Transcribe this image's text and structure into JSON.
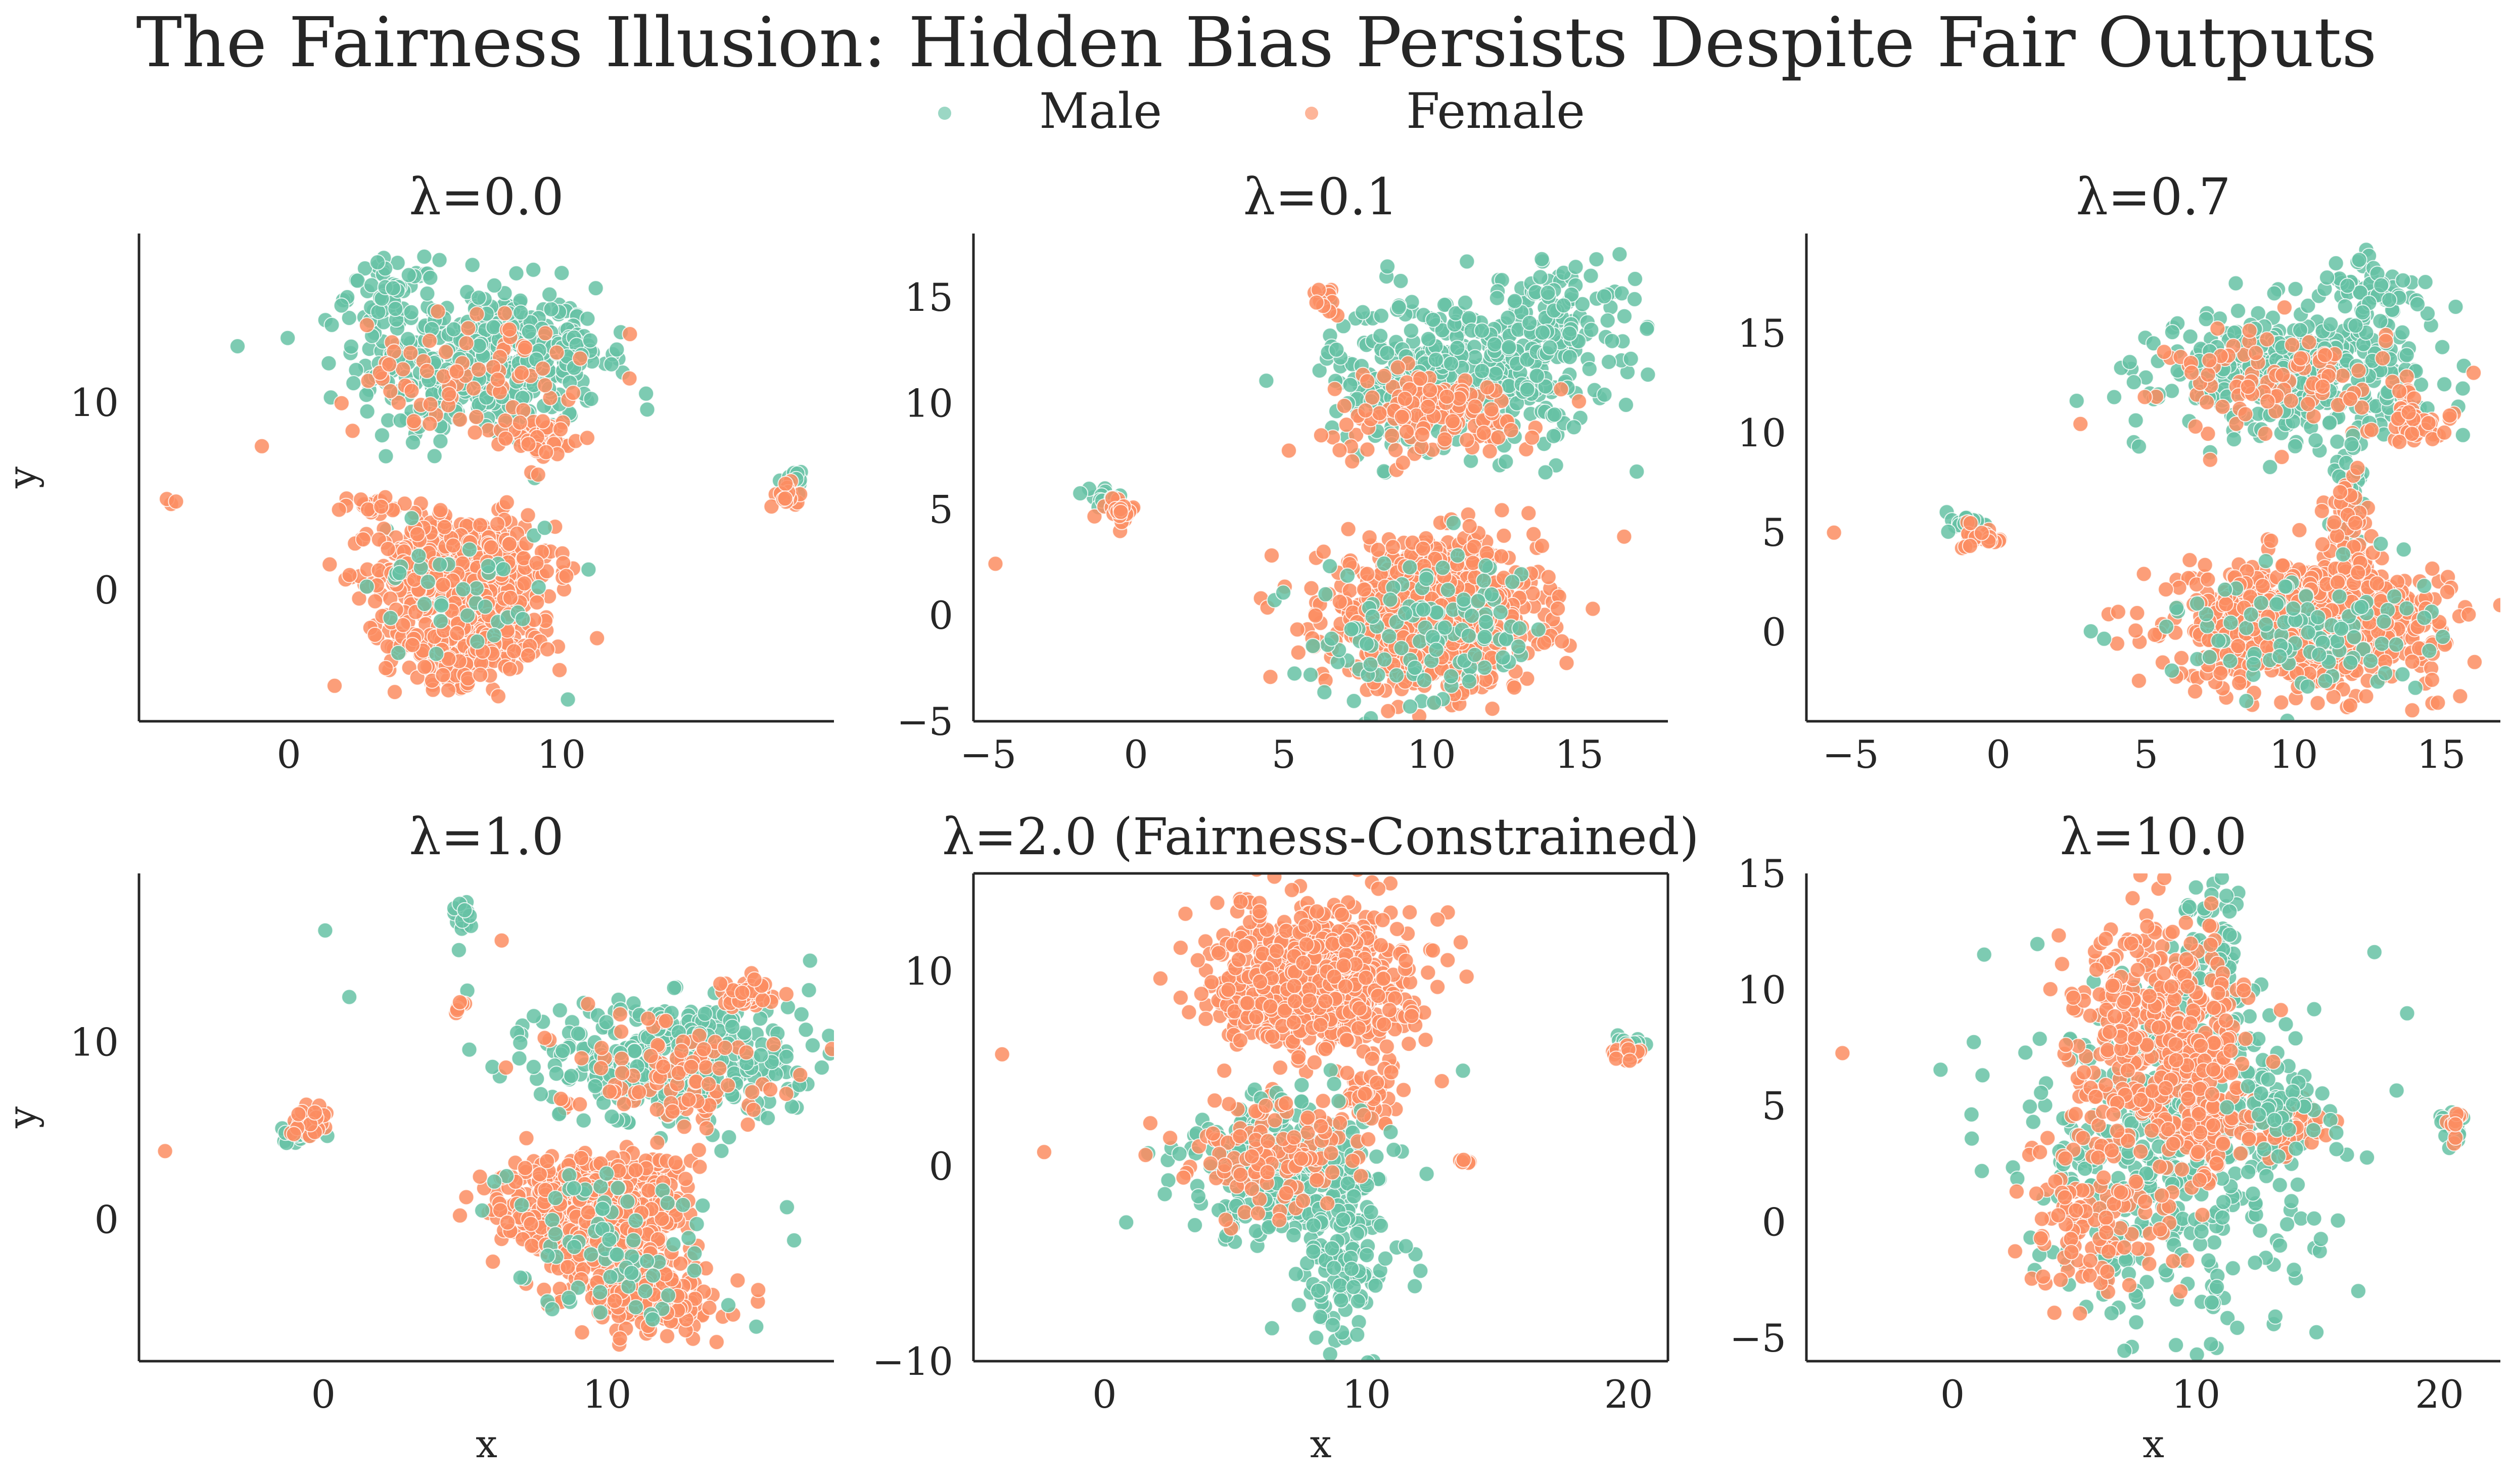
{
  "figure": {
    "title": "The Fairness Illusion: Hidden Bias Persists Despite Fair Outputs",
    "legend": [
      {
        "label": "Male",
        "color": "#66c2a5"
      },
      {
        "label": "Female",
        "color": "#fc8d62"
      }
    ]
  },
  "chart_data": [
    {
      "type": "scatter",
      "title": "λ=0.0",
      "xlabel": "",
      "ylabel": "y",
      "xlim": [
        -5.5,
        20
      ],
      "ylim": [
        -7,
        19
      ],
      "xticks": [
        0,
        10
      ],
      "yticks": [
        0,
        10
      ],
      "spines": "left-bottom",
      "grid": false,
      "clusters": [
        {
          "group": "Male",
          "cx": 7,
          "cy": 12,
          "sx": 2.2,
          "sy": 2.1,
          "n": 420
        },
        {
          "group": "Male",
          "cx": 3.8,
          "cy": 15.8,
          "sx": 0.8,
          "sy": 0.9,
          "n": 60
        },
        {
          "group": "Male",
          "cx": 10.3,
          "cy": 12.7,
          "sx": 0.9,
          "sy": 0.6,
          "n": 50
        },
        {
          "group": "Female",
          "cx": 6.5,
          "cy": 11.5,
          "sx": 2.0,
          "sy": 1.6,
          "n": 80
        },
        {
          "group": "Female",
          "cx": 9.2,
          "cy": 8.2,
          "sx": 0.6,
          "sy": 0.5,
          "n": 45
        },
        {
          "group": "Female",
          "cx": 6.5,
          "cy": 1.0,
          "sx": 1.6,
          "sy": 1.5,
          "n": 550
        },
        {
          "group": "Female",
          "cx": 6.5,
          "cy": -3.0,
          "sx": 1.5,
          "sy": 1.0,
          "n": 200
        },
        {
          "group": "Female",
          "cx": 3.0,
          "cy": 4.4,
          "sx": 0.7,
          "sy": 0.3,
          "n": 25
        },
        {
          "group": "Male",
          "cx": 6.5,
          "cy": 0.5,
          "sx": 1.8,
          "sy": 2.2,
          "n": 40
        },
        {
          "group": "Male",
          "cx": 18.5,
          "cy": 5.8,
          "sx": 0.2,
          "sy": 0.3,
          "n": 20
        },
        {
          "group": "Female",
          "cx": 18.3,
          "cy": 5.0,
          "sx": 0.2,
          "sy": 0.3,
          "n": 20
        },
        {
          "group": "Female",
          "cx": -4.3,
          "cy": 4.8,
          "sx": 0.1,
          "sy": 0.1,
          "n": 3
        },
        {
          "group": "Female",
          "cx": -1.0,
          "cy": 7.6,
          "sx": 0.05,
          "sy": 0.05,
          "n": 1
        },
        {
          "group": "Male",
          "cx": 0,
          "cy": 13.4,
          "sx": 0.05,
          "sy": 0.05,
          "n": 1
        }
      ]
    },
    {
      "type": "scatter",
      "title": "λ=0.1",
      "xlabel": "",
      "ylabel": "",
      "xlim": [
        -5.5,
        18
      ],
      "ylim": [
        -5,
        18
      ],
      "xticks": [
        -5,
        0,
        5,
        10,
        15
      ],
      "yticks": [
        -5,
        0,
        5,
        10,
        15
      ],
      "spines": "left-bottom",
      "grid": false,
      "clusters": [
        {
          "group": "Male",
          "cx": 11,
          "cy": 11.5,
          "sx": 2.2,
          "sy": 1.8,
          "n": 420
        },
        {
          "group": "Male",
          "cx": 14.5,
          "cy": 14.5,
          "sx": 1.2,
          "sy": 1.3,
          "n": 80
        },
        {
          "group": "Female",
          "cx": 10,
          "cy": 9.5,
          "sx": 1.8,
          "sy": 1.0,
          "n": 140
        },
        {
          "group": "Female",
          "cx": 6.5,
          "cy": 15.0,
          "sx": 0.3,
          "sy": 0.4,
          "n": 12
        },
        {
          "group": "Female",
          "cx": 10,
          "cy": 0,
          "sx": 1.8,
          "sy": 1.7,
          "n": 800
        },
        {
          "group": "Male",
          "cx": 10,
          "cy": -1,
          "sx": 2.0,
          "sy": 1.8,
          "n": 120
        },
        {
          "group": "Male",
          "cx": -1,
          "cy": 5.5,
          "sx": 0.3,
          "sy": 0.2,
          "n": 20
        },
        {
          "group": "Female",
          "cx": -0.6,
          "cy": 5.0,
          "sx": 0.3,
          "sy": 0.3,
          "n": 25
        },
        {
          "group": "Female",
          "cx": -4.8,
          "cy": 2.3,
          "sx": 0.05,
          "sy": 0.05,
          "n": 1
        },
        {
          "group": "Male",
          "cx": 17,
          "cy": 6.8,
          "sx": 0.05,
          "sy": 0.05,
          "n": 1
        }
      ]
    },
    {
      "type": "scatter",
      "title": "λ=0.7",
      "xlabel": "",
      "ylabel": "",
      "xlim": [
        -6.5,
        17
      ],
      "ylim": [
        -4.5,
        20
      ],
      "xticks": [
        -5,
        0,
        5,
        10,
        15
      ],
      "yticks": [
        0,
        5,
        10,
        15
      ],
      "spines": "left-bottom",
      "grid": false,
      "clusters": [
        {
          "group": "Male",
          "cx": 10,
          "cy": 13.0,
          "sx": 2.2,
          "sy": 1.5,
          "n": 420
        },
        {
          "group": "Male",
          "cx": 12.5,
          "cy": 17.0,
          "sx": 1.0,
          "sy": 0.9,
          "n": 60
        },
        {
          "group": "Female",
          "cx": 10,
          "cy": 12.5,
          "sx": 2.0,
          "sy": 1.4,
          "n": 110
        },
        {
          "group": "Female",
          "cx": 14.2,
          "cy": 10.3,
          "sx": 0.6,
          "sy": 0.4,
          "n": 40
        },
        {
          "group": "Male",
          "cx": 12.0,
          "cy": 7.0,
          "sx": 0.3,
          "sy": 1.3,
          "n": 30
        },
        {
          "group": "Female",
          "cx": 11.8,
          "cy": 5.5,
          "sx": 0.4,
          "sy": 1.3,
          "n": 40
        },
        {
          "group": "Female",
          "cx": 10.5,
          "cy": 0.5,
          "sx": 2.2,
          "sy": 1.5,
          "n": 850
        },
        {
          "group": "Male",
          "cx": 10,
          "cy": 0,
          "sx": 2.2,
          "sy": 1.6,
          "n": 100
        },
        {
          "group": "Male",
          "cx": -1.0,
          "cy": 5.4,
          "sx": 0.3,
          "sy": 0.3,
          "n": 20
        },
        {
          "group": "Female",
          "cx": -0.5,
          "cy": 4.8,
          "sx": 0.3,
          "sy": 0.3,
          "n": 25
        },
        {
          "group": "Female",
          "cx": -5.5,
          "cy": 5.0,
          "sx": 0.05,
          "sy": 0.05,
          "n": 1
        },
        {
          "group": "Male",
          "cx": 15.5,
          "cy": 16.3,
          "sx": 0.05,
          "sy": 0.05,
          "n": 1
        }
      ]
    },
    {
      "type": "scatter",
      "title": "λ=1.0",
      "xlabel": "x",
      "ylabel": "y",
      "xlim": [
        -6.5,
        18
      ],
      "ylim": [
        -8,
        19.5
      ],
      "xticks": [
        0,
        10
      ],
      "yticks": [
        0,
        10
      ],
      "spines": "left-bottom",
      "grid": false,
      "clusters": [
        {
          "group": "Male",
          "cx": 12.5,
          "cy": 9.0,
          "sx": 2.3,
          "sy": 1.8,
          "n": 380
        },
        {
          "group": "Female",
          "cx": 12,
          "cy": 8.5,
          "sx": 2.0,
          "sy": 1.5,
          "n": 100
        },
        {
          "group": "Female",
          "cx": 15,
          "cy": 12.7,
          "sx": 0.5,
          "sy": 0.4,
          "n": 40
        },
        {
          "group": "Male",
          "cx": 5,
          "cy": 17.0,
          "sx": 0.3,
          "sy": 0.6,
          "n": 20
        },
        {
          "group": "Female",
          "cx": 9.5,
          "cy": 0.5,
          "sx": 1.6,
          "sy": 1.6,
          "n": 700
        },
        {
          "group": "Female",
          "cx": 11.5,
          "cy": -4.5,
          "sx": 1.2,
          "sy": 1.0,
          "n": 200
        },
        {
          "group": "Male",
          "cx": 10,
          "cy": -1,
          "sx": 2.0,
          "sy": 2.4,
          "n": 80
        },
        {
          "group": "Male",
          "cx": -0.8,
          "cy": 4.8,
          "sx": 0.3,
          "sy": 0.3,
          "n": 20
        },
        {
          "group": "Female",
          "cx": -0.5,
          "cy": 5.5,
          "sx": 0.3,
          "sy": 0.5,
          "n": 25
        },
        {
          "group": "Female",
          "cx": 4.7,
          "cy": 12.2,
          "sx": 0.2,
          "sy": 0.2,
          "n": 6
        },
        {
          "group": "Female",
          "cx": -5.6,
          "cy": 3.8,
          "sx": 0.05,
          "sy": 0.05,
          "n": 1
        },
        {
          "group": "Male",
          "cx": 0.1,
          "cy": 16.3,
          "sx": 0.05,
          "sy": 0.05,
          "n": 1
        },
        {
          "group": "Male",
          "cx": 1.0,
          "cy": 12.5,
          "sx": 0.05,
          "sy": 0.05,
          "n": 1
        },
        {
          "group": "Male",
          "cx": 17.2,
          "cy": 14.5,
          "sx": 0.05,
          "sy": 0.05,
          "n": 1
        },
        {
          "group": "Female",
          "cx": 6.3,
          "cy": 15.8,
          "sx": 0.05,
          "sy": 0.05,
          "n": 1
        }
      ]
    },
    {
      "type": "scatter",
      "title": "λ=2.0 (Fairness-Constrained)",
      "xlabel": "x",
      "ylabel": "",
      "xlim": [
        -5,
        21.5
      ],
      "ylim": [
        -10,
        15
      ],
      "xticks": [
        0,
        10,
        20
      ],
      "yticks": [
        -10,
        0,
        10
      ],
      "spines": "all",
      "grid": false,
      "clusters": [
        {
          "group": "Female",
          "cx": 8,
          "cy": 9.5,
          "sx": 1.8,
          "sy": 1.8,
          "n": 800
        },
        {
          "group": "Female",
          "cx": 10,
          "cy": 3.5,
          "sx": 0.6,
          "sy": 0.6,
          "n": 50
        },
        {
          "group": "Male",
          "cx": 7,
          "cy": 0,
          "sx": 2.0,
          "sy": 1.8,
          "n": 320
        },
        {
          "group": "Male",
          "cx": 9.3,
          "cy": -5.5,
          "sx": 0.9,
          "sy": 1.8,
          "n": 100
        },
        {
          "group": "Female",
          "cx": 6.5,
          "cy": 0.5,
          "sx": 1.8,
          "sy": 1.5,
          "n": 120
        },
        {
          "group": "Male",
          "cx": 20,
          "cy": 6.2,
          "sx": 0.3,
          "sy": 0.3,
          "n": 20
        },
        {
          "group": "Female",
          "cx": 20,
          "cy": 5.7,
          "sx": 0.3,
          "sy": 0.3,
          "n": 20
        },
        {
          "group": "Female",
          "cx": 13.8,
          "cy": 0.3,
          "sx": 0.2,
          "sy": 0.1,
          "n": 5
        },
        {
          "group": "Female",
          "cx": -4,
          "cy": 5.7,
          "sx": 0.05,
          "sy": 0.05,
          "n": 1
        },
        {
          "group": "Female",
          "cx": -2.3,
          "cy": 0.7,
          "sx": 0.05,
          "sy": 0.05,
          "n": 1
        },
        {
          "group": "Male",
          "cx": 13.7,
          "cy": 4.8,
          "sx": 0.05,
          "sy": 0.05,
          "n": 1
        }
      ]
    },
    {
      "type": "scatter",
      "title": "λ=10.0",
      "xlabel": "x",
      "ylabel": "",
      "xlim": [
        -6,
        22.5
      ],
      "ylim": [
        -6,
        15
      ],
      "xticks": [
        0,
        10,
        20
      ],
      "yticks": [
        -5,
        0,
        5,
        10,
        15
      ],
      "spines": "left-bottom",
      "grid": false,
      "clusters": [
        {
          "group": "Male",
          "cx": 9,
          "cy": 3,
          "sx": 3.0,
          "sy": 3.5,
          "n": 500
        },
        {
          "group": "Male",
          "cx": 10.8,
          "cy": 11.5,
          "sx": 0.8,
          "sy": 1.5,
          "n": 80
        },
        {
          "group": "Female",
          "cx": 8.5,
          "cy": 8,
          "sx": 1.8,
          "sy": 2.5,
          "n": 400
        },
        {
          "group": "Female",
          "cx": 6,
          "cy": 0,
          "sx": 1.5,
          "sy": 2.0,
          "n": 120
        },
        {
          "group": "Female",
          "cx": 10.5,
          "cy": 4.5,
          "sx": 0.8,
          "sy": 1.5,
          "n": 80
        },
        {
          "group": "Female",
          "cx": 13.5,
          "cy": 4.2,
          "sx": 0.8,
          "sy": 0.6,
          "n": 60
        },
        {
          "group": "Male",
          "cx": 13.5,
          "cy": 4.5,
          "sx": 0.9,
          "sy": 0.7,
          "n": 40
        },
        {
          "group": "Male",
          "cx": 20.5,
          "cy": 4.3,
          "sx": 0.25,
          "sy": 0.4,
          "n": 25
        },
        {
          "group": "Female",
          "cx": 20.6,
          "cy": 4.3,
          "sx": 0.2,
          "sy": 0.3,
          "n": 10
        },
        {
          "group": "Female",
          "cx": -4.5,
          "cy": 7.3,
          "sx": 0.05,
          "sy": 0.05,
          "n": 1
        },
        {
          "group": "Male",
          "cx": 3.5,
          "cy": 12,
          "sx": 0.05,
          "sy": 0.05,
          "n": 1
        },
        {
          "group": "Male",
          "cx": 13.3,
          "cy": -4.3,
          "sx": 0.1,
          "sy": 0.1,
          "n": 2
        }
      ]
    }
  ]
}
